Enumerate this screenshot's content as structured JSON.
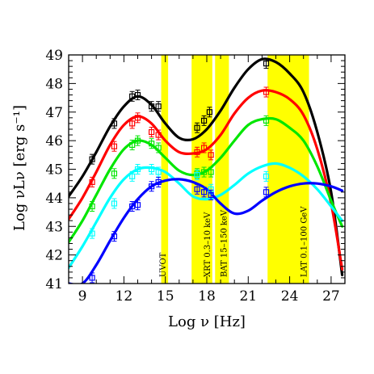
{
  "chart_data": {
    "type": "line",
    "title": "",
    "xlabel": "Log ν [Hz]",
    "ylabel": "Log νLν [erg s⁻¹]",
    "xlim": [
      8,
      28
    ],
    "ylim": [
      41,
      49
    ],
    "x_ticks": [
      9,
      12,
      15,
      18,
      21,
      24,
      27
    ],
    "y_ticks": [
      41,
      42,
      43,
      44,
      45,
      46,
      47,
      48,
      49
    ],
    "grid": false,
    "legend": "none",
    "bands": [
      {
        "label": "UVOT",
        "x0": 14.7,
        "x1": 15.2
      },
      {
        "label": "XRT 0.3–10 keV",
        "x0": 16.9,
        "x1": 18.4
      },
      {
        "label": "BAT 15–150 keV",
        "x0": 18.6,
        "x1": 19.6
      },
      {
        "label": "LAT 0.1–100 GeV",
        "x0": 22.4,
        "x1": 25.4
      }
    ],
    "band_color": "#ffff00",
    "series": [
      {
        "color": "#000000",
        "curve": [
          [
            8,
            44.05
          ],
          [
            9,
            44.75
          ],
          [
            10,
            45.6
          ],
          [
            11,
            46.5
          ],
          [
            12,
            47.2
          ],
          [
            13,
            47.55
          ],
          [
            14,
            47.25
          ],
          [
            15,
            46.6
          ],
          [
            16,
            46.1
          ],
          [
            17,
            46.05
          ],
          [
            18,
            46.4
          ],
          [
            19,
            47.05
          ],
          [
            20,
            47.85
          ],
          [
            21,
            48.5
          ],
          [
            22,
            48.85
          ],
          [
            23,
            48.75
          ],
          [
            24,
            48.35
          ],
          [
            25,
            47.7
          ],
          [
            26,
            46.3
          ],
          [
            27,
            44.2
          ],
          [
            27.8,
            41.3
          ]
        ],
        "points": [
          [
            9.7,
            45.35
          ],
          [
            11.3,
            46.6
          ],
          [
            12.6,
            47.55
          ],
          [
            13,
            47.6
          ],
          [
            14,
            47.2
          ],
          [
            14.5,
            47.2
          ],
          [
            17.3,
            46.45
          ],
          [
            17.8,
            46.7
          ],
          [
            18.2,
            47.0
          ],
          [
            22.3,
            48.7
          ]
        ]
      },
      {
        "color": "#ff0000",
        "curve": [
          [
            8,
            43.25
          ],
          [
            9,
            44.0
          ],
          [
            10,
            44.9
          ],
          [
            11,
            45.85
          ],
          [
            12,
            46.55
          ],
          [
            13,
            46.85
          ],
          [
            14,
            46.6
          ],
          [
            15,
            46.0
          ],
          [
            16,
            45.6
          ],
          [
            17,
            45.55
          ],
          [
            18,
            45.7
          ],
          [
            19,
            46.2
          ],
          [
            20,
            46.95
          ],
          [
            21,
            47.5
          ],
          [
            22,
            47.75
          ],
          [
            23,
            47.7
          ],
          [
            24,
            47.45
          ],
          [
            25,
            46.9
          ],
          [
            26,
            45.7
          ],
          [
            27,
            43.8
          ],
          [
            27.8,
            41.5
          ]
        ],
        "points": [
          [
            9.7,
            44.55
          ],
          [
            11.3,
            45.8
          ],
          [
            12.6,
            46.6
          ],
          [
            13,
            46.8
          ],
          [
            14,
            46.3
          ],
          [
            14.5,
            46.2
          ],
          [
            17.3,
            45.6
          ],
          [
            17.8,
            45.75
          ],
          [
            18.3,
            45.5
          ],
          [
            22.3,
            47.7
          ]
        ]
      },
      {
        "color": "#00e600",
        "curve": [
          [
            8,
            42.45
          ],
          [
            9,
            43.2
          ],
          [
            10,
            44.1
          ],
          [
            11,
            45.0
          ],
          [
            12,
            45.7
          ],
          [
            13,
            46.0
          ],
          [
            14,
            45.85
          ],
          [
            15,
            45.4
          ],
          [
            16,
            44.95
          ],
          [
            17,
            44.8
          ],
          [
            18,
            44.95
          ],
          [
            19,
            45.4
          ],
          [
            20,
            46.0
          ],
          [
            21,
            46.55
          ],
          [
            22,
            46.75
          ],
          [
            23,
            46.75
          ],
          [
            24,
            46.45
          ],
          [
            25,
            46.0
          ],
          [
            26,
            45.1
          ],
          [
            27,
            43.9
          ],
          [
            27.8,
            43.0
          ]
        ],
        "points": [
          [
            9.7,
            43.7
          ],
          [
            11.3,
            44.85
          ],
          [
            12.6,
            45.85
          ],
          [
            13,
            46.0
          ],
          [
            14,
            45.9
          ],
          [
            14.5,
            45.75
          ],
          [
            17.3,
            44.85
          ],
          [
            17.8,
            44.9
          ],
          [
            18.3,
            44.9
          ],
          [
            22.3,
            46.7
          ]
        ]
      },
      {
        "color": "#00ffff",
        "curve": [
          [
            8,
            41.55
          ],
          [
            9,
            42.3
          ],
          [
            10,
            43.15
          ],
          [
            11,
            44.0
          ],
          [
            12,
            44.65
          ],
          [
            13,
            45.0
          ],
          [
            14,
            45.05
          ],
          [
            15,
            44.9
          ],
          [
            16,
            44.5
          ],
          [
            17,
            44.05
          ],
          [
            18,
            43.95
          ],
          [
            19,
            44.1
          ],
          [
            20,
            44.45
          ],
          [
            21,
            44.85
          ],
          [
            22,
            45.1
          ],
          [
            23,
            45.2
          ],
          [
            24,
            45.05
          ],
          [
            25,
            44.75
          ],
          [
            26,
            44.3
          ],
          [
            27,
            43.7
          ],
          [
            27.8,
            43.2
          ]
        ],
        "points": [
          [
            9.7,
            42.75
          ],
          [
            11.3,
            43.8
          ],
          [
            12.6,
            44.75
          ],
          [
            13,
            45.0
          ],
          [
            14,
            45.0
          ],
          [
            14.5,
            44.9
          ],
          [
            17.3,
            44.8
          ],
          [
            17.8,
            44.2
          ],
          [
            18.3,
            44.3
          ],
          [
            22.3,
            44.75
          ]
        ]
      },
      {
        "color": "#0000ff",
        "curve": [
          [
            8,
            41.0
          ],
          [
            9,
            41.0
          ],
          [
            10,
            41.65
          ],
          [
            11,
            42.5
          ],
          [
            12,
            43.3
          ],
          [
            13,
            43.95
          ],
          [
            14,
            44.4
          ],
          [
            15,
            44.6
          ],
          [
            16,
            44.65
          ],
          [
            17,
            44.55
          ],
          [
            18,
            44.3
          ],
          [
            19,
            43.8
          ],
          [
            20,
            43.45
          ],
          [
            21,
            43.55
          ],
          [
            22,
            43.9
          ],
          [
            23,
            44.2
          ],
          [
            24,
            44.4
          ],
          [
            25,
            44.5
          ],
          [
            26,
            44.5
          ],
          [
            27,
            44.4
          ],
          [
            27.8,
            44.25
          ]
        ],
        "points": [
          [
            9.7,
            41.2
          ],
          [
            11.3,
            42.65
          ],
          [
            12.6,
            43.7
          ],
          [
            13,
            43.75
          ],
          [
            14,
            44.4
          ],
          [
            14.5,
            44.55
          ],
          [
            17.3,
            44.3
          ],
          [
            17.8,
            44.2
          ],
          [
            18.3,
            44.1
          ],
          [
            22.3,
            44.2
          ]
        ]
      }
    ]
  }
}
